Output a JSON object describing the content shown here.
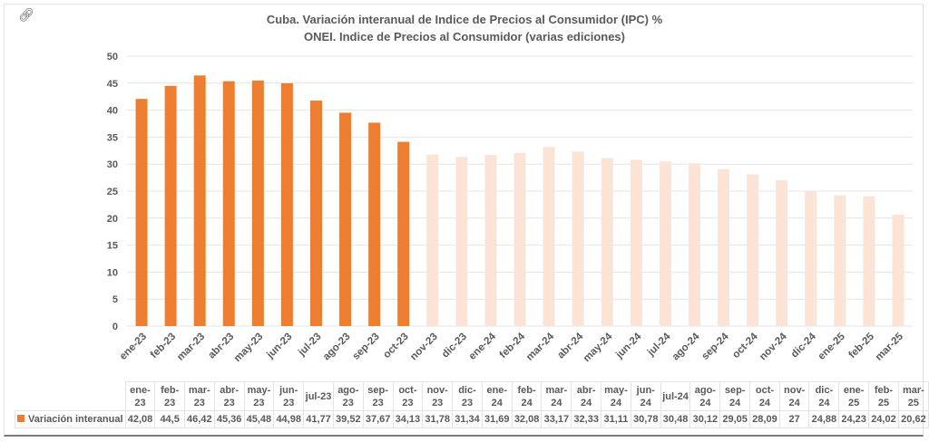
{
  "chart_data": {
    "type": "bar",
    "title": "Cuba. Variación interanual de Indice de Precios al Consumidor (IPC) %",
    "subtitle": "ONEI. Indice de Precios al Consumidor (varias ediciones)",
    "xlabel": "",
    "ylabel": "",
    "ylim": [
      0,
      50
    ],
    "yticks": [
      0,
      5,
      10,
      15,
      20,
      25,
      30,
      35,
      40,
      45,
      50
    ],
    "grid": true,
    "legend": "data-table-bottom",
    "categories": [
      "ene-23",
      "feb-23",
      "mar-23",
      "abr-23",
      "may-23",
      "jun-23",
      "jul-23",
      "ago-23",
      "sep-23",
      "oct-23",
      "nov-23",
      "dic-23",
      "ene-24",
      "feb-24",
      "mar-24",
      "abr-24",
      "may-24",
      "jun-24",
      "jul-24",
      "ago-24",
      "sep-24",
      "oct-24",
      "nov-24",
      "dic-24",
      "ene-25",
      "feb-25",
      "mar-25"
    ],
    "series": [
      {
        "name": "Variación interanual",
        "values": [
          42.08,
          44.5,
          46.42,
          45.36,
          45.48,
          44.98,
          41.77,
          39.52,
          37.67,
          34.13,
          31.78,
          31.34,
          31.69,
          32.08,
          33.17,
          32.33,
          31.11,
          30.78,
          30.48,
          30.12,
          29.05,
          28.09,
          27,
          24.88,
          24.23,
          24.02,
          20.62
        ],
        "display_values": [
          "42,08",
          "44,5",
          "46,42",
          "45,36",
          "45,48",
          "44,98",
          "41,77",
          "39,52",
          "37,67",
          "34,13",
          "31,78",
          "31,34",
          "31,69",
          "32,08",
          "33,17",
          "32,33",
          "31,11",
          "30,78",
          "30,48",
          "30,12",
          "29,05",
          "28,09",
          "27",
          "24,88",
          "24,23",
          "24,02",
          "20,62"
        ],
        "highlighted_count": 10,
        "color": "#ed7d31",
        "faded_color": "#fbe3d6"
      }
    ],
    "table_headers": [
      [
        "ene-",
        "23"
      ],
      [
        "feb-",
        "23"
      ],
      [
        "mar-",
        "23"
      ],
      [
        "abr-",
        "23"
      ],
      [
        "may-",
        "23"
      ],
      [
        "jun-",
        "23"
      ],
      [
        "jul-23",
        ""
      ],
      [
        "ago-",
        "23"
      ],
      [
        "sep-",
        "23"
      ],
      [
        "oct-",
        "23"
      ],
      [
        "nov-",
        "23"
      ],
      [
        "dic-",
        "23"
      ],
      [
        "ene-",
        "24"
      ],
      [
        "feb-",
        "24"
      ],
      [
        "mar-",
        "24"
      ],
      [
        "abr-",
        "24"
      ],
      [
        "may-",
        "24"
      ],
      [
        "jun-",
        "24"
      ],
      [
        "jul-24",
        ""
      ],
      [
        "ago-",
        "24"
      ],
      [
        "sep-",
        "24"
      ],
      [
        "oct-",
        "24"
      ],
      [
        "nov-",
        "24"
      ],
      [
        "dic-",
        "24"
      ],
      [
        "ene-",
        "25"
      ],
      [
        "feb-",
        "25"
      ],
      [
        "mar-",
        "25"
      ]
    ]
  },
  "icons": {
    "corner": "link-icon"
  }
}
